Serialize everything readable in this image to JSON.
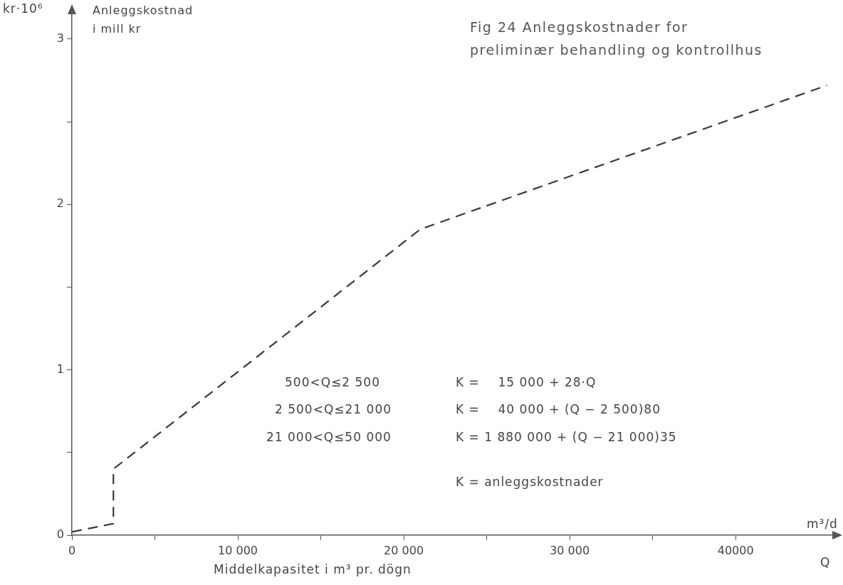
{
  "chart_data": {
    "type": "line",
    "title": "Fig 24 Anleggskostnader for preliminær behandling og kontrollhus",
    "xlabel": "Middelkapasitet i m³ pr. dögn",
    "ylabel": "kr·10⁶",
    "annotations": [
      "Anleggskostnad i mill kr",
      "m³/d",
      "Q",
      "500<Q≤2 500",
      "2 500<Q≤21 000",
      "21 000<Q≤50 000",
      "K =    15 000 + 28·Q",
      "K =    40 000 + (Q − 2 500)80",
      "K = 1 880 000 + (Q − 21 000)35",
      "K = anleggskostnader"
    ],
    "series": [
      {
        "color": "#3a3a3a",
        "x": [
          0,
          2500,
          2500,
          21000,
          45500
        ],
        "values": [
          0.02,
          0.07,
          0.4,
          1.85,
          2.72
        ]
      }
    ],
    "xlim": [
      0,
      46000
    ],
    "ylim": [
      0,
      3.15
    ],
    "xticks": [
      0,
      {
        "value": 5000,
        "label": null
      },
      {
        "value": 10000,
        "label": "10 000"
      },
      {
        "value": 15000,
        "label": null
      },
      {
        "value": 20000,
        "label": "20 000"
      },
      {
        "value": 25000,
        "label": null
      },
      {
        "value": 30000,
        "label": "30 000"
      },
      {
        "value": 35000,
        "label": null
      },
      {
        "value": 40000,
        "label": "40000"
      }
    ],
    "yticks": [
      0,
      {
        "value": 0.5,
        "label": null
      },
      1,
      {
        "value": 1.5,
        "label": null
      },
      2,
      {
        "value": 2.5,
        "label": null
      },
      3
    ],
    "grid": false,
    "legend": false,
    "marker": "none",
    "line_style": "dashed"
  }
}
